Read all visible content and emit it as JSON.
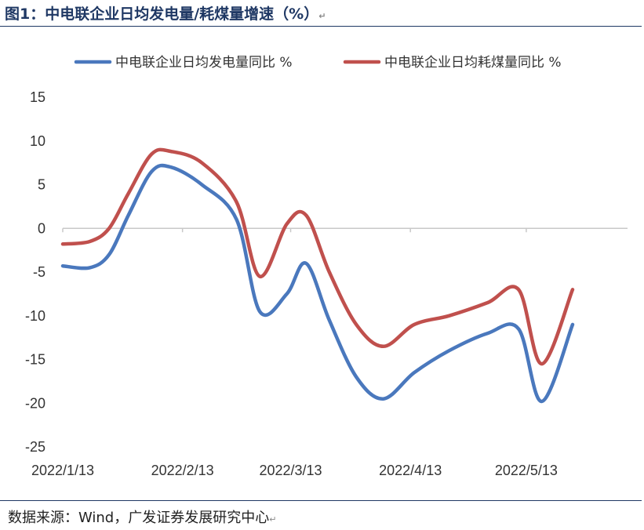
{
  "title": "图1：中电联企业日均发电量/耗煤量增速（%）",
  "title_mark": "↵",
  "source": "数据来源：Wind，广发证券发展研究中心",
  "source_mark": "↵",
  "colors": {
    "title": "#1f3864",
    "series1": "#4a78bd",
    "series2": "#c0504d",
    "axis": "#c8c8c8"
  },
  "chart_data": {
    "type": "line",
    "title": "",
    "xlabel": "",
    "ylabel": "",
    "ylim": [
      -25,
      15
    ],
    "yticks": [
      15,
      10,
      5,
      0,
      -5,
      -10,
      -15,
      -20,
      -25
    ],
    "x_tick_labels": [
      "2022/1/13",
      "2022/2/13",
      "2022/3/13",
      "2022/4/13",
      "2022/5/13"
    ],
    "grid": false,
    "legend_position": "top",
    "series": [
      {
        "name": "中电联企业日均发电量同比 %",
        "color": "#4a78bd",
        "points": [
          [
            "2022/1/13",
            -4.3
          ],
          [
            "2022/1/20",
            -4.5
          ],
          [
            "2022/1/25",
            -3.0
          ],
          [
            "2022/1/30",
            1.5
          ],
          [
            "2022/2/5",
            6.5
          ],
          [
            "2022/2/10",
            7.0
          ],
          [
            "2022/2/18",
            5.0
          ],
          [
            "2022/2/27",
            1.0
          ],
          [
            "2022/3/5",
            -9.5
          ],
          [
            "2022/3/12",
            -7.5
          ],
          [
            "2022/3/17",
            -4.0
          ],
          [
            "2022/3/23",
            -10.5
          ],
          [
            "2022/3/30",
            -17.0
          ],
          [
            "2022/4/6",
            -19.5
          ],
          [
            "2022/4/14",
            -16.5
          ],
          [
            "2022/4/23",
            -14.0
          ],
          [
            "2022/5/3",
            -12.0
          ],
          [
            "2022/5/11",
            -11.5
          ],
          [
            "2022/5/17",
            -19.8
          ],
          [
            "2022/5/25",
            -11.0
          ]
        ]
      },
      {
        "name": "中电联企业日均耗煤量同比 %",
        "color": "#c0504d",
        "points": [
          [
            "2022/1/13",
            -1.8
          ],
          [
            "2022/1/20",
            -1.5
          ],
          [
            "2022/1/25",
            0.0
          ],
          [
            "2022/1/30",
            4.0
          ],
          [
            "2022/2/5",
            8.5
          ],
          [
            "2022/2/10",
            8.8
          ],
          [
            "2022/2/18",
            7.5
          ],
          [
            "2022/2/27",
            3.0
          ],
          [
            "2022/3/5",
            -5.5
          ],
          [
            "2022/3/12",
            0.5
          ],
          [
            "2022/3/17",
            1.5
          ],
          [
            "2022/3/23",
            -5.0
          ],
          [
            "2022/3/30",
            -11.0
          ],
          [
            "2022/4/6",
            -13.5
          ],
          [
            "2022/4/14",
            -11.0
          ],
          [
            "2022/4/23",
            -10.0
          ],
          [
            "2022/5/3",
            -8.5
          ],
          [
            "2022/5/11",
            -7.0
          ],
          [
            "2022/5/17",
            -15.5
          ],
          [
            "2022/5/25",
            -7.0
          ]
        ]
      }
    ]
  }
}
